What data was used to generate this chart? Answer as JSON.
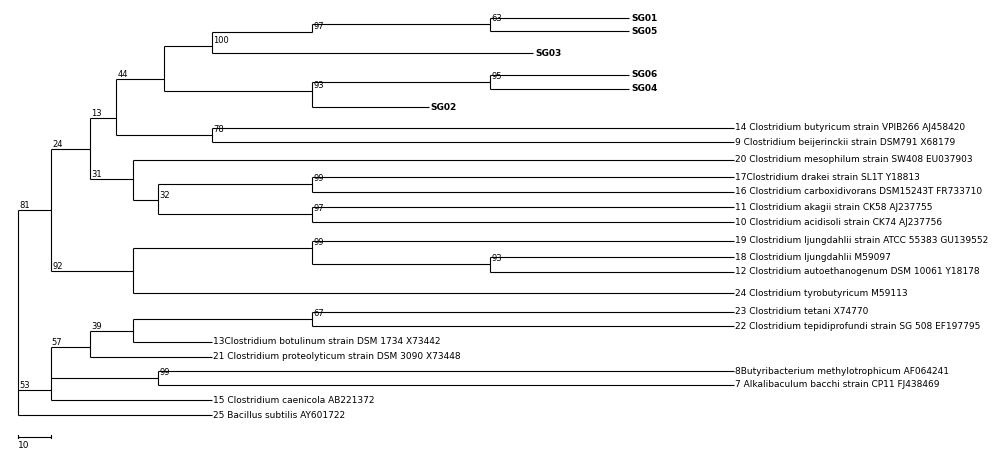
{
  "background": "#ffffff",
  "line_color": "#000000",
  "lw": 0.8,
  "fs_label": 6.5,
  "fs_bootstrap": 6.0,
  "bold_labels": [
    "SG01",
    "SG05",
    "SG03",
    "SG06",
    "SG04",
    "SG02"
  ]
}
